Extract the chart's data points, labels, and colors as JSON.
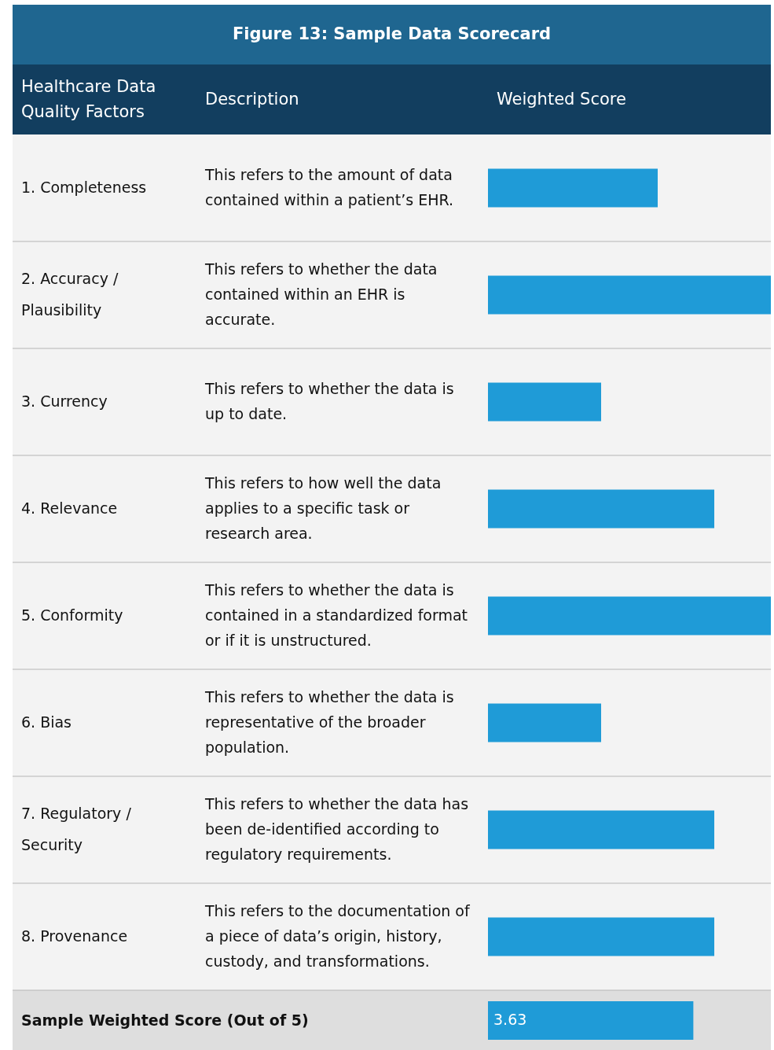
{
  "chart_data": {
    "type": "bar",
    "orientation": "horizontal",
    "title": "Figure 13: Sample Data Scorecard",
    "ylabel": "Healthcare Data Quality Factors",
    "xlabel": "Weighted Score",
    "categories": [
      "1. Completeness",
      "2. Accuracy / Plausibility",
      "3. Currency",
      "4. Relevance",
      "5. Conformity",
      "6. Bias",
      "7. Regulatory / Security",
      "8. Provenance",
      "Sample Weighted Score (Out of 5)"
    ],
    "values": [
      3,
      5,
      2,
      4,
      5,
      2,
      4,
      4,
      3.63
    ],
    "value_labels": [
      null,
      null,
      null,
      null,
      null,
      null,
      null,
      null,
      "3.63"
    ],
    "xlim": [
      0,
      5
    ],
    "tick_labels": "y",
    "color": "#1f9bd7",
    "annotations": [
      "Description",
      "This refers to the amount of data contained within a patient’s EHR.",
      "This refers to whether the data contained within an EHR is accurate.",
      "This refers to whether the data is up to date.",
      "This refers to how well the data applies to a specific task or research area.",
      "This refers to whether the data is contained in a standardized format or if it is unstructured.",
      "This refers to whether the data is representative of the broader population.",
      "This refers to whether the data has been de-identified according to regulatory requirements.",
      "This refers to the documentation of a piece of data’s origin, history, custody, and transformations."
    ]
  }
}
